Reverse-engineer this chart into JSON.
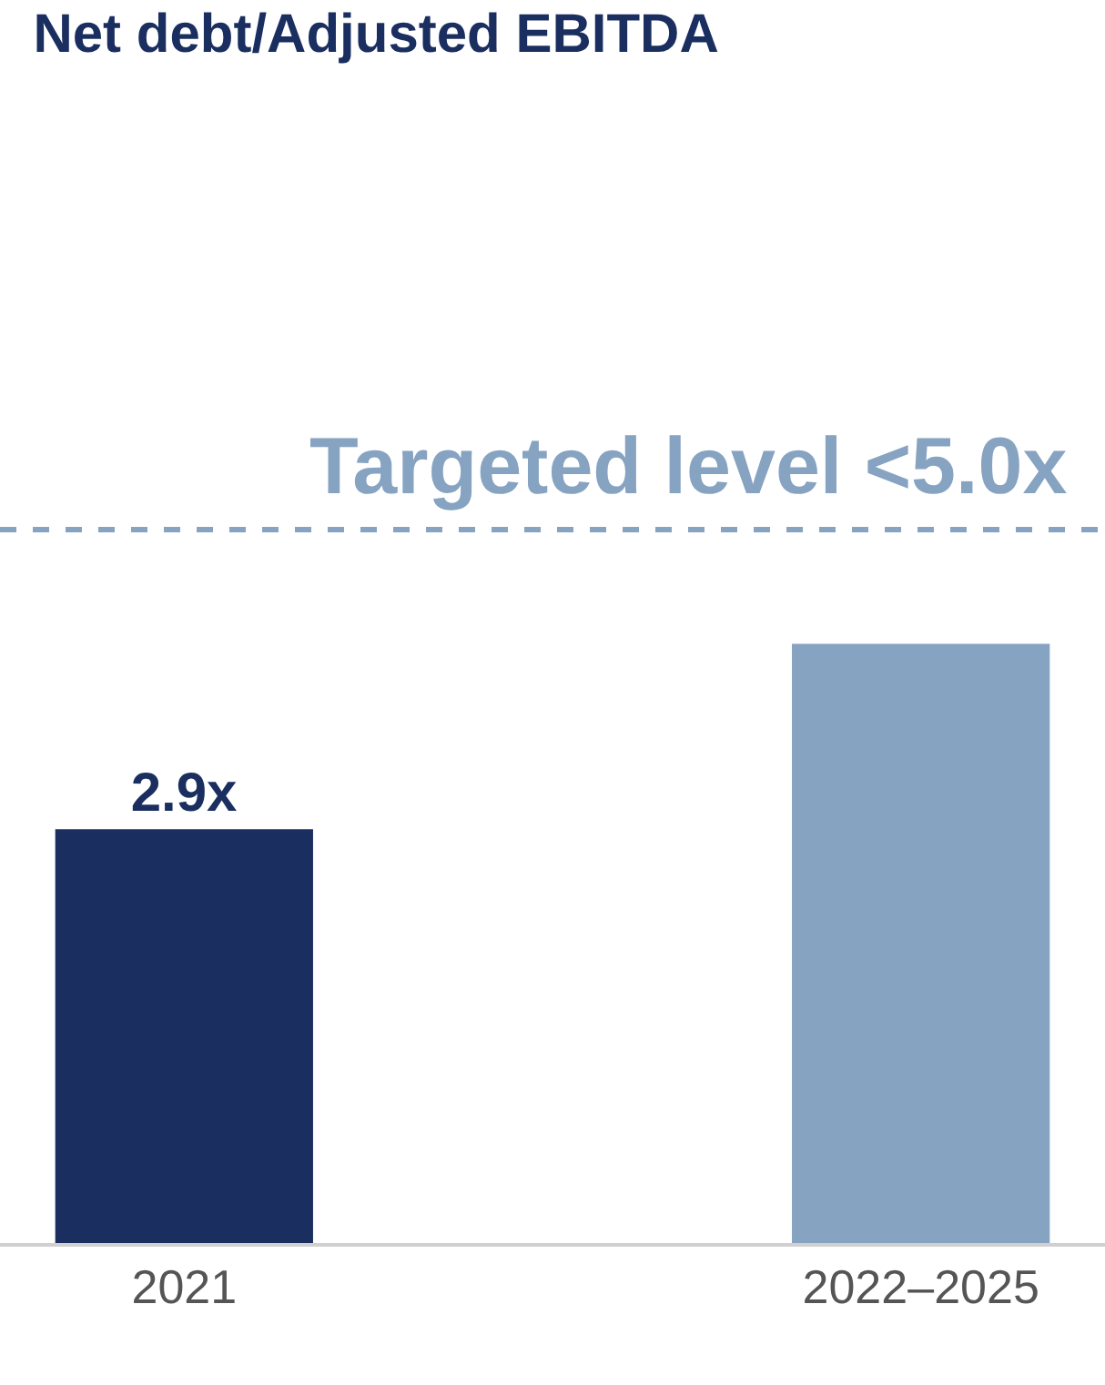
{
  "chart_data": {
    "type": "bar",
    "title": "Net debt/Adjusted EBITDA",
    "categories": [
      "2021",
      null,
      "2022–2025"
    ],
    "values": [
      2.9,
      null,
      4.2
    ],
    "colors": [
      "#1a2f5f",
      "#87a3c2",
      "#87a3c2"
    ],
    "value_labels": [
      "2.9x",
      null,
      null
    ],
    "tick_labels": "x",
    "ref_lines": [
      {
        "axis": "y",
        "value": 5.0,
        "label": "Targeted level <5.0x",
        "color": "#87a3c2",
        "line_style": "dashed"
      }
    ]
  }
}
